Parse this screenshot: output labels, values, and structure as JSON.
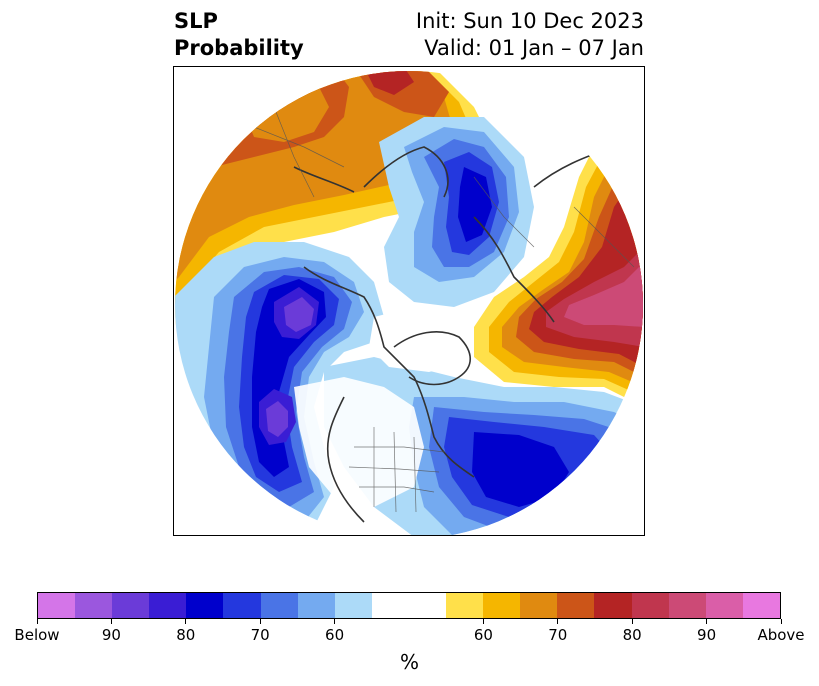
{
  "title": {
    "left_line1": "SLP",
    "left_line2": "Probability",
    "right_line1": "Init: Sun 10 Dec 2023",
    "right_line2": "Valid: 01 Jan – 07 Jan"
  },
  "colorbar": {
    "unit_label": "%",
    "below_colors": [
      "#d475e8",
      "#9b57de",
      "#6b3bd8",
      "#3a1dd4",
      "#0000cc",
      "#2438de",
      "#4a74e6",
      "#74aaf0",
      "#acdaf8"
    ],
    "neutral_color": "#ffffff",
    "above_colors": [
      "#ffe04a",
      "#f5b600",
      "#e08a10",
      "#cc5518",
      "#b42424",
      "#c0364e",
      "#cc4a76",
      "#da5ea8",
      "#e878e0"
    ],
    "ticks": {
      "t0": "Below",
      "t1": "90",
      "t2": "80",
      "t3": "70",
      "t4": "60",
      "t5": "60",
      "t6": "70",
      "t7": "80",
      "t8": "90",
      "t9": "Above"
    }
  },
  "map": {
    "projection": "north-polar-stereographic",
    "field": "sea-level-pressure-tercile-probability",
    "below_regions": [
      "central-europe",
      "greenland-norwegian-sea",
      "eastern-north-pacific",
      "western-north-america",
      "north-atlantic"
    ],
    "above_regions": [
      "siberia-east-asia",
      "western-north-pacific-japan",
      "arctic-alaska-edge",
      "canadian-prairies"
    ]
  }
}
